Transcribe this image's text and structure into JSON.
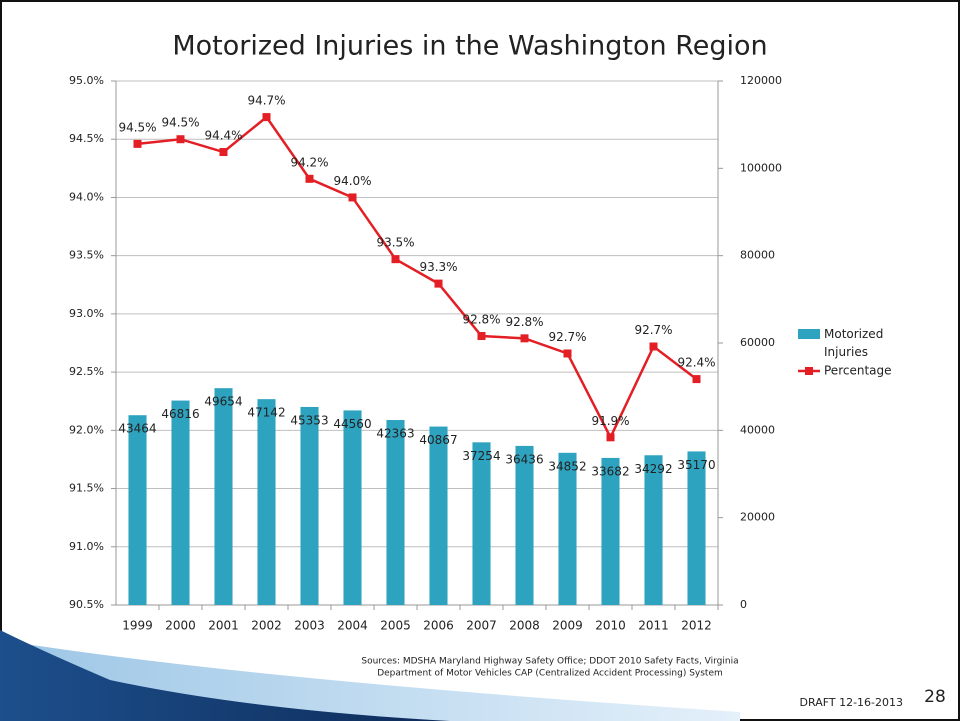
{
  "chart_data": {
    "type": "bar_line",
    "title": "Motorized Injuries in the Washington Region",
    "categories": [
      "1999",
      "2000",
      "2001",
      "2002",
      "2003",
      "2004",
      "2005",
      "2006",
      "2007",
      "2008",
      "2009",
      "2010",
      "2011",
      "2012"
    ],
    "series": [
      {
        "name": "Motorized Injuries",
        "type": "bar",
        "axis": "y2",
        "color": "#2ea3bf",
        "values": [
          43464,
          46816,
          49654,
          47142,
          45353,
          44560,
          42363,
          40867,
          37254,
          36436,
          34852,
          33682,
          34292,
          35170
        ]
      },
      {
        "name": "Percentage",
        "type": "line",
        "axis": "y",
        "color": "#e31e24",
        "values": [
          94.46,
          94.5,
          94.39,
          94.69,
          94.16,
          94.0,
          93.47,
          93.26,
          92.81,
          92.79,
          92.66,
          91.94,
          92.72,
          92.44
        ],
        "value_labels": [
          "94.5%",
          "94.5%",
          "94.4%",
          "94.7%",
          "94.2%",
          "94.0%",
          "93.5%",
          "93.3%",
          "92.8%",
          "92.8%",
          "92.7%",
          "91.9%",
          "92.7%",
          "92.4%"
        ]
      }
    ],
    "ylim": [
      90.5,
      95.0
    ],
    "yticks": [
      {
        "value": 90.5,
        "label": "90.5%"
      },
      {
        "value": 91.0,
        "label": "91.0%"
      },
      {
        "value": 91.5,
        "label": "91.5%"
      },
      {
        "value": 92.0,
        "label": "92.0%"
      },
      {
        "value": 92.5,
        "label": "92.5%"
      },
      {
        "value": 93.0,
        "label": "93.0%"
      },
      {
        "value": 93.5,
        "label": "93.5%"
      },
      {
        "value": 94.0,
        "label": "94.0%"
      },
      {
        "value": 94.5,
        "label": "94.5%"
      },
      {
        "value": 95.0,
        "label": "95.0%"
      }
    ],
    "y2lim": [
      0,
      120000
    ],
    "y2ticks": [
      0,
      20000,
      40000,
      60000,
      80000,
      100000,
      120000
    ],
    "grid": true,
    "legend": "right"
  },
  "footer": {
    "sources": [
      "Sources: MDSHA Maryland Highway Safety Office; DDOT 2010 Safety Facts, Virginia",
      "Department of Motor Vehicles CAP (Centralized Accident Processing) System"
    ],
    "draft": "DRAFT 12-16-2013",
    "page": 28
  }
}
